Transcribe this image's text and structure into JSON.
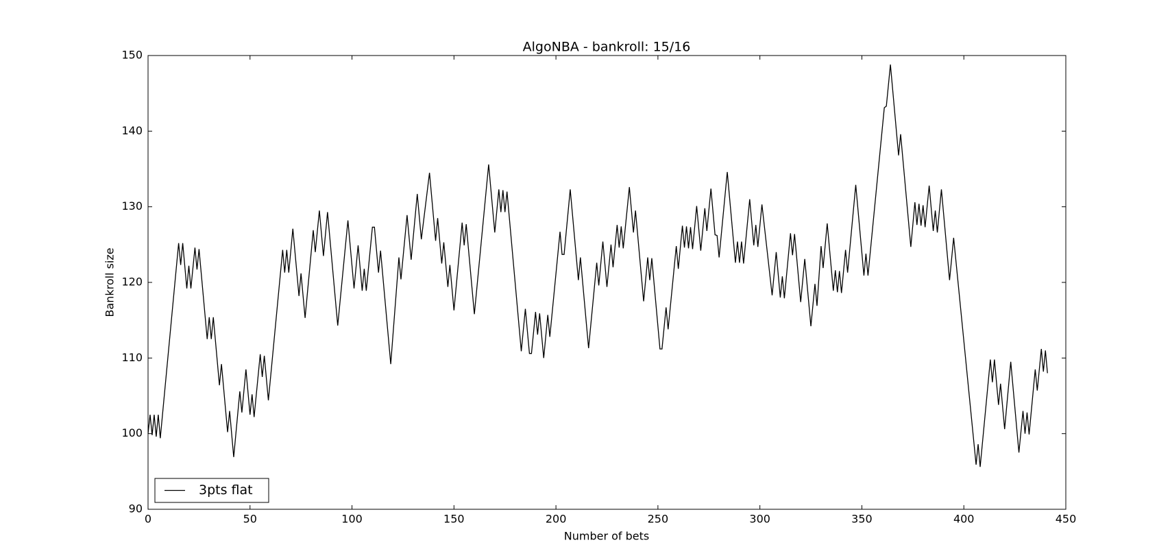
{
  "chart_data": {
    "type": "line",
    "title": "AlgoNBA - bankroll: 15/16",
    "x_label": "Number of bets",
    "y_label": "Bankroll size",
    "xlim": [
      0,
      450
    ],
    "xticks": [
      0,
      50,
      100,
      150,
      200,
      250,
      300,
      350,
      400,
      450
    ],
    "ylim": [
      90,
      150
    ],
    "yticks": [
      90,
      100,
      110,
      120,
      130,
      140,
      150
    ],
    "legend": "lower left",
    "x": [
      0,
      1,
      2,
      3,
      4,
      5,
      6,
      15,
      16,
      17,
      19,
      20,
      21,
      23,
      24,
      25,
      29,
      30,
      31,
      32,
      35,
      36,
      39,
      40,
      42,
      45,
      46,
      48,
      50,
      51,
      52,
      55,
      56,
      57,
      59,
      66,
      67,
      68,
      69,
      71,
      74,
      75,
      77,
      81,
      82,
      84,
      86,
      88,
      93,
      98,
      101,
      103,
      105,
      106,
      107,
      110,
      111,
      113,
      114,
      119,
      123,
      124,
      127,
      129,
      132,
      134,
      138,
      141,
      142,
      144,
      145,
      147,
      148,
      150,
      154,
      155,
      156,
      160,
      167,
      170,
      172,
      173,
      174,
      175,
      176,
      183,
      185,
      187,
      188,
      190,
      191,
      192,
      194,
      196,
      197,
      202,
      203,
      204,
      207,
      211,
      212,
      216,
      220,
      221,
      223,
      225,
      227,
      228,
      230,
      231,
      232,
      233,
      236,
      238,
      239,
      243,
      245,
      246,
      247,
      251,
      252,
      254,
      255,
      259,
      260,
      262,
      263,
      264,
      265,
      266,
      267,
      269,
      271,
      273,
      274,
      276,
      278,
      279,
      280,
      284,
      288,
      289,
      290,
      291,
      292,
      295,
      297,
      298,
      299,
      301,
      306,
      308,
      310,
      311,
      312,
      315,
      316,
      317,
      320,
      322,
      325,
      327,
      328,
      330,
      331,
      333,
      336,
      337,
      338,
      339,
      340,
      342,
      343,
      347,
      351,
      352,
      353,
      361,
      362,
      364,
      368,
      369,
      374,
      376,
      377,
      378,
      379,
      380,
      381,
      383,
      385,
      386,
      387,
      389,
      393,
      395,
      406,
      407,
      408,
      413,
      414,
      415,
      417,
      418,
      420,
      423,
      427,
      429,
      430,
      431,
      432,
      435,
      436,
      438,
      439,
      440,
      441
    ],
    "series": [
      {
        "name": "3pts flat",
        "color": "#000000",
        "values": [
          100,
          102.5,
          99.8,
          102.5,
          99.6,
          102.5,
          99.4,
          125.2,
          122.3,
          125.2,
          119.2,
          122.2,
          119.2,
          124.6,
          121.7,
          124.4,
          112.5,
          115.4,
          112.5,
          115.4,
          106.4,
          109.2,
          100.2,
          103,
          96.9,
          105.6,
          102.8,
          108.5,
          102.5,
          105.2,
          102.2,
          110.5,
          107.5,
          110.3,
          104.4,
          124.3,
          121.3,
          124.3,
          121.3,
          127.1,
          118.2,
          121.2,
          115.3,
          126.9,
          124,
          129.5,
          123.5,
          129.3,
          114.3,
          128.2,
          119.2,
          124.9,
          118.9,
          121.8,
          118.9,
          127.3,
          127.3,
          121.3,
          124.2,
          109.2,
          123.3,
          120.4,
          128.9,
          123,
          131.7,
          125.7,
          134.5,
          125.5,
          128.5,
          122.5,
          125.3,
          119.4,
          122.3,
          116.3,
          127.9,
          124.9,
          127.7,
          115.8,
          135.6,
          126.6,
          132.3,
          129.3,
          132.2,
          129.3,
          132,
          110.9,
          116.5,
          110.6,
          110.6,
          116.1,
          113.1,
          115.9,
          110,
          115.7,
          112.8,
          126.7,
          123.7,
          123.7,
          132.3,
          120.3,
          123.3,
          111.3,
          122.6,
          119.6,
          125.4,
          119.4,
          125,
          122,
          127.6,
          124.6,
          127.4,
          124.5,
          132.6,
          126.6,
          129.5,
          117.5,
          123.3,
          120.3,
          123.2,
          111.2,
          111.2,
          116.7,
          113.8,
          124.8,
          121.8,
          127.5,
          124.6,
          127.4,
          124.5,
          127.3,
          124.4,
          130.1,
          124.2,
          129.8,
          126.8,
          132.4,
          126.3,
          126.2,
          123.3,
          134.6,
          122.6,
          125.4,
          122.6,
          125.4,
          122.5,
          131,
          124.9,
          127.6,
          124.7,
          130.3,
          118.3,
          124,
          118,
          120.8,
          117.9,
          126.5,
          123.6,
          126.4,
          117.4,
          123.1,
          114.2,
          119.8,
          116.9,
          124.8,
          121.9,
          127.8,
          118.9,
          121.6,
          118.7,
          121.5,
          118.6,
          124.3,
          121.3,
          132.9,
          120.9,
          123.8,
          120.9,
          143.1,
          143.3,
          148.8,
          136.8,
          139.6,
          124.7,
          130.6,
          127.6,
          130.4,
          127.5,
          130.2,
          127.3,
          132.8,
          126.8,
          129.5,
          126.6,
          132.3,
          120.3,
          125.9,
          95.9,
          98.6,
          95.6,
          109.8,
          106.8,
          109.8,
          103.8,
          106.6,
          100.6,
          109.5,
          97.5,
          103,
          100,
          102.8,
          99.9,
          108.5,
          105.7,
          111.2,
          108.2,
          111,
          108
        ]
      }
    ]
  }
}
